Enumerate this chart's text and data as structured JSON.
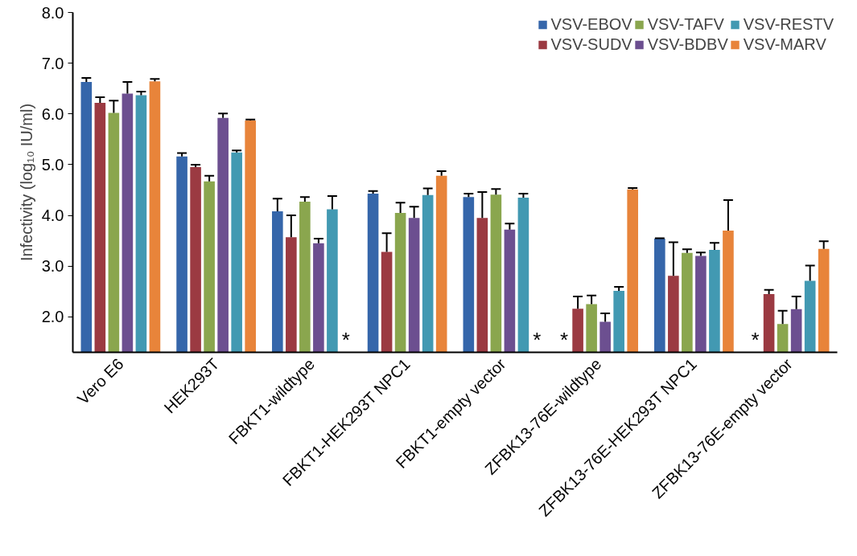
{
  "chart_data": {
    "type": "bar",
    "ylabel": "Infectivity (log₁₀ IU/ml)",
    "categories": [
      "Vero E6",
      "HEK293T",
      "FBKT1-wildtype",
      "FBKT1-HEK293T NPC1",
      "FBKT1-empty vector",
      "ZFBK13-76E-wildtype",
      "ZFBK13-76E-HEK293T NPC1",
      "ZFBK13-76E-empty vector"
    ],
    "series": [
      {
        "name": "VSV-EBOV",
        "color": "#3566aa",
        "values": [
          6.63,
          5.16,
          4.08,
          4.43,
          4.36,
          null,
          3.54,
          null
        ],
        "errors": [
          [
            6.63,
            6.71
          ],
          [
            5.16,
            5.23
          ],
          [
            4.08,
            4.33
          ],
          [
            4.43,
            4.48
          ],
          [
            4.36,
            4.43
          ],
          null,
          [
            3.54,
            3.55
          ],
          null
        ]
      },
      {
        "name": "VSV-SUDV",
        "color": "#9b3a42",
        "values": [
          6.22,
          4.95,
          3.57,
          3.28,
          3.95,
          2.16,
          2.81,
          2.45
        ],
        "errors": [
          [
            6.22,
            6.33
          ],
          [
            4.95,
            5.0
          ],
          [
            3.57,
            4.0
          ],
          [
            3.28,
            3.65
          ],
          [
            3.95,
            4.46
          ],
          [
            2.16,
            2.4
          ],
          [
            2.81,
            3.47
          ],
          [
            2.45,
            2.53
          ]
        ]
      },
      {
        "name": "VSV-TAFV",
        "color": "#8aa64e",
        "values": [
          6.02,
          4.67,
          4.27,
          4.05,
          4.41,
          2.25,
          3.26,
          1.86
        ],
        "errors": [
          [
            6.02,
            6.26
          ],
          [
            4.67,
            4.78
          ],
          [
            4.27,
            4.36
          ],
          [
            4.05,
            4.25
          ],
          [
            4.41,
            4.52
          ],
          [
            2.25,
            2.42
          ],
          [
            3.26,
            3.33
          ],
          [
            1.86,
            2.12
          ]
        ]
      },
      {
        "name": "VSV-BDBV",
        "color": "#6c4f90",
        "values": [
          6.4,
          5.92,
          3.45,
          3.95,
          3.72,
          1.9,
          3.2,
          2.15
        ],
        "errors": [
          [
            6.4,
            6.63
          ],
          [
            5.92,
            6.01
          ],
          [
            3.45,
            3.54
          ],
          [
            3.95,
            4.17
          ],
          [
            3.72,
            3.84
          ],
          [
            1.9,
            2.07
          ],
          [
            3.2,
            3.27
          ],
          [
            2.15,
            2.4
          ]
        ]
      },
      {
        "name": "VSV-RESTV",
        "color": "#4299b2",
        "values": [
          6.37,
          5.24,
          4.12,
          4.4,
          4.35,
          2.51,
          3.32,
          2.71
        ],
        "errors": [
          [
            6.37,
            6.44
          ],
          [
            5.24,
            5.28
          ],
          [
            4.12,
            4.38
          ],
          [
            4.4,
            4.53
          ],
          [
            4.35,
            4.43
          ],
          [
            2.51,
            2.59
          ],
          [
            3.32,
            3.46
          ],
          [
            2.71,
            3.01
          ]
        ]
      },
      {
        "name": "VSV-MARV",
        "color": "#e8843a",
        "values": [
          6.64,
          5.87,
          null,
          4.78,
          null,
          4.51,
          3.7,
          3.34
        ],
        "errors": [
          [
            6.64,
            6.69
          ],
          [
            5.87,
            5.89
          ],
          null,
          [
            4.78,
            4.87
          ],
          null,
          [
            4.51,
            4.54
          ],
          [
            3.7,
            4.3
          ],
          [
            3.34,
            3.49
          ]
        ]
      }
    ],
    "annotations": [
      {
        "text": "*",
        "x": "FBKT1-wildtype",
        "y": 1.55
      },
      {
        "text": "*",
        "x": "FBKT1-empty vector",
        "y": 1.55
      },
      {
        "text": "*",
        "x": "ZFBK13-76E-wildtype",
        "y": 1.55
      },
      {
        "text": "*",
        "x": "ZFBK13-76E-empty vector",
        "y": 1.55
      }
    ],
    "ylim": [
      1.3,
      8.0
    ],
    "yticks": [
      {
        "value": 2,
        "label": "2.0"
      },
      {
        "value": 3,
        "label": "3.0"
      },
      {
        "value": 4,
        "label": "4.0"
      },
      {
        "value": 5,
        "label": "5.0"
      },
      {
        "value": 6,
        "label": "6.0"
      },
      {
        "value": 7,
        "label": "7.0"
      },
      {
        "value": 8,
        "label": "8.0"
      }
    ],
    "grid": false,
    "legend": "top right"
  }
}
